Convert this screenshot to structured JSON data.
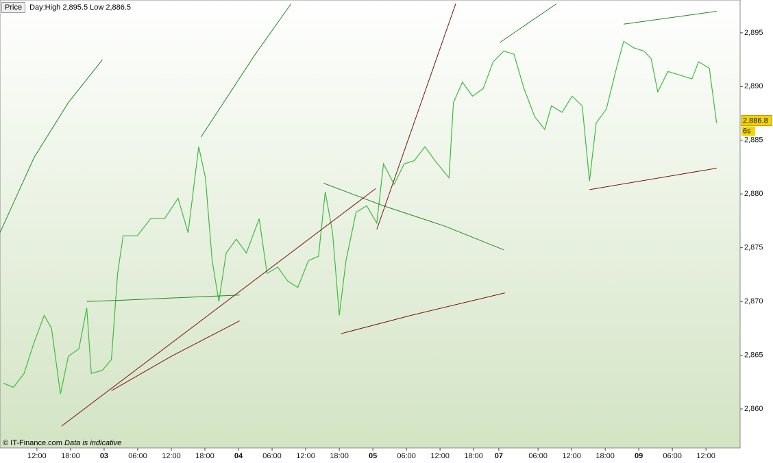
{
  "toolbar": {
    "title": "Price",
    "info": "Day:High 2,895.5 Low 2,886.5"
  },
  "footer": {
    "copyright": "© IT-Finance.com",
    "note": "Data is indicative"
  },
  "chart_data": {
    "type": "line",
    "xlim": [
      -0.6,
      131.6
    ],
    "ylim": [
      2856.37,
      2898.05
    ],
    "xticks": [
      {
        "value": 6,
        "label": "12:00"
      },
      {
        "value": 12,
        "label": "18:00"
      },
      {
        "value": 18,
        "label": "03"
      },
      {
        "value": 24,
        "label": "06:00"
      },
      {
        "value": 30,
        "label": "12:00"
      },
      {
        "value": 36,
        "label": "18:00"
      },
      {
        "value": 42,
        "label": "04"
      },
      {
        "value": 48,
        "label": "06:00"
      },
      {
        "value": 54,
        "label": "12:00"
      },
      {
        "value": 60,
        "label": "18:00"
      },
      {
        "value": 66,
        "label": "05"
      },
      {
        "value": 72,
        "label": "06:00"
      },
      {
        "value": 78,
        "label": "12:00"
      },
      {
        "value": 84,
        "label": "18:00"
      },
      {
        "value": 88.5,
        "label": "07"
      },
      {
        "value": 95.5,
        "label": "06:00"
      },
      {
        "value": 101.5,
        "label": "12:00"
      },
      {
        "value": 107.5,
        "label": "18:00"
      },
      {
        "value": 113.5,
        "label": "09"
      },
      {
        "value": 119.5,
        "label": "06:00"
      },
      {
        "value": 125.5,
        "label": "12:00"
      }
    ],
    "yticks": [
      {
        "value": 2860,
        "label": "2,860"
      },
      {
        "value": 2865,
        "label": "2,865"
      },
      {
        "value": 2870,
        "label": "2,870"
      },
      {
        "value": 2875,
        "label": "2,875"
      },
      {
        "value": 2880,
        "label": "2,880"
      },
      {
        "value": 2885,
        "label": "2,885"
      },
      {
        "value": 2890,
        "label": "2,890"
      },
      {
        "value": 2895,
        "label": "2,895"
      }
    ],
    "last_price": {
      "value": 2886.8,
      "label": "2,886.8"
    },
    "timer": "6s",
    "series": [
      {
        "color": "#3dbb3d",
        "x": [
          0,
          1.8,
          3.7,
          5.5,
          7.3,
          8.6,
          10.2,
          11.6,
          13.5,
          14.9,
          15.7,
          17.7,
          19.3,
          20.4,
          21.4,
          23.9,
          26.3,
          28.8,
          31.2,
          33.0,
          34.9,
          36.1,
          37.3,
          38.5,
          39.8,
          41.6,
          43.4,
          45.7,
          47.1,
          49.0,
          50.8,
          52.6,
          54.5,
          56.3,
          57.5,
          58.8,
          60.0,
          61.2,
          63.0,
          64.9,
          66.7,
          67.9,
          69.8,
          71.6,
          73.4,
          75.3,
          77.1,
          79.6,
          80.4,
          82.0,
          83.8,
          85.7,
          87.5,
          89.4,
          91.2,
          93.0,
          94.9,
          96.7,
          97.9,
          99.8,
          101.6,
          103.4,
          104.7,
          105.9,
          107.7,
          109.5,
          110.8,
          112.6,
          114.4,
          115.7,
          116.9,
          118.7,
          121.2,
          123.0,
          124.2,
          126.1,
          127.4
        ],
        "values": [
          2862.4,
          2862.0,
          2863.3,
          2866.2,
          2868.7,
          2867.5,
          2861.4,
          2864.9,
          2865.6,
          2869.4,
          2863.3,
          2863.6,
          2864.6,
          2872.6,
          2876.1,
          2876.1,
          2877.7,
          2877.7,
          2879.6,
          2876.4,
          2884.4,
          2881.5,
          2873.8,
          2870.0,
          2874.5,
          2875.8,
          2874.5,
          2877.7,
          2872.6,
          2873.2,
          2871.9,
          2871.3,
          2873.8,
          2874.2,
          2880.2,
          2876.4,
          2868.7,
          2873.8,
          2878.3,
          2878.9,
          2877.3,
          2882.8,
          2880.9,
          2882.8,
          2883.1,
          2884.4,
          2883.1,
          2881.5,
          2888.5,
          2890.4,
          2889.1,
          2889.8,
          2892.3,
          2893.3,
          2893.0,
          2889.8,
          2887.2,
          2886.0,
          2888.2,
          2887.6,
          2889.1,
          2888.2,
          2881.2,
          2886.6,
          2887.9,
          2891.7,
          2894.2,
          2893.6,
          2893.3,
          2892.6,
          2889.5,
          2891.4,
          2891.0,
          2890.7,
          2892.3,
          2891.7,
          2886.6
        ]
      },
      {
        "color": "#1f8a1f",
        "x": [
          -0.6,
          5.5,
          11.6,
          17.7
        ],
        "values": [
          2876.4,
          2883.4,
          2888.5,
          2892.5
        ]
      },
      {
        "color": "#1f8a1f",
        "x": [
          35.3,
          45.0,
          51.4
        ],
        "values": [
          2885.3,
          2893.0,
          2897.7
        ]
      },
      {
        "color": "#1f8a1f",
        "x": [
          88.7,
          98.8
        ],
        "values": [
          2894.1,
          2897.7
        ]
      },
      {
        "color": "#1f8a1f",
        "x": [
          110.8,
          127.4
        ],
        "values": [
          2895.8,
          2897.0
        ]
      },
      {
        "color": "#1f8a1f",
        "x": [
          57.2,
          67.9,
          78.9,
          89.4
        ],
        "values": [
          2881.0,
          2878.9,
          2877.0,
          2874.8
        ]
      },
      {
        "color": "#1f8a1f",
        "x": [
          14.9,
          20.4,
          42.2
        ],
        "values": [
          2870.0,
          2870.1,
          2870.6
        ]
      },
      {
        "color": "#7a1010",
        "x": [
          10.4,
          66.5
        ],
        "values": [
          2858.4,
          2880.5
        ]
      },
      {
        "color": "#7a1010",
        "x": [
          19.3,
          30.0,
          42.2
        ],
        "values": [
          2861.7,
          2864.9,
          2868.2
        ]
      },
      {
        "color": "#7a1010",
        "x": [
          60.3,
          72.8,
          89.6
        ],
        "values": [
          2867.0,
          2868.7,
          2870.8
        ]
      },
      {
        "color": "#7a1010",
        "x": [
          66.7,
          80.8
        ],
        "values": [
          2876.7,
          2897.7
        ]
      },
      {
        "color": "#7a1010",
        "x": [
          104.7,
          127.4
        ],
        "values": [
          2880.4,
          2882.4
        ]
      }
    ]
  }
}
